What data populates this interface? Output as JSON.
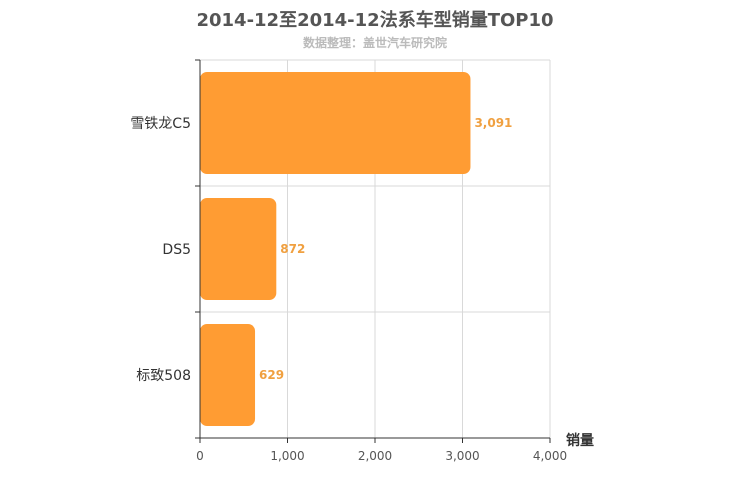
{
  "title": "2014-12至2014-12法系车型销量TOP10",
  "subtitle": "数据整理：盖世汽车研究院",
  "colors": {
    "bar": "#ff9c33",
    "label": "#f0a040",
    "grid": "#d9d9d9",
    "axis": "#333333"
  },
  "chart_data": {
    "type": "bar",
    "orientation": "horizontal",
    "title": "2014-12至2014-12法系车型销量TOP10",
    "subtitle": "数据整理：盖世汽车研究院",
    "categories": [
      "雪铁龙C5",
      "DS5",
      "标致508"
    ],
    "values": [
      3091,
      872,
      629
    ],
    "value_labels": [
      "3,091",
      "872",
      "629"
    ],
    "xlabel": "销量",
    "ylabel": "",
    "xlim": [
      0,
      4000
    ],
    "xticks": [
      0,
      1000,
      2000,
      3000,
      4000
    ],
    "xtick_labels": [
      "0",
      "1,000",
      "2,000",
      "3,000",
      "4,000"
    ],
    "grid": true,
    "legend": "none"
  }
}
